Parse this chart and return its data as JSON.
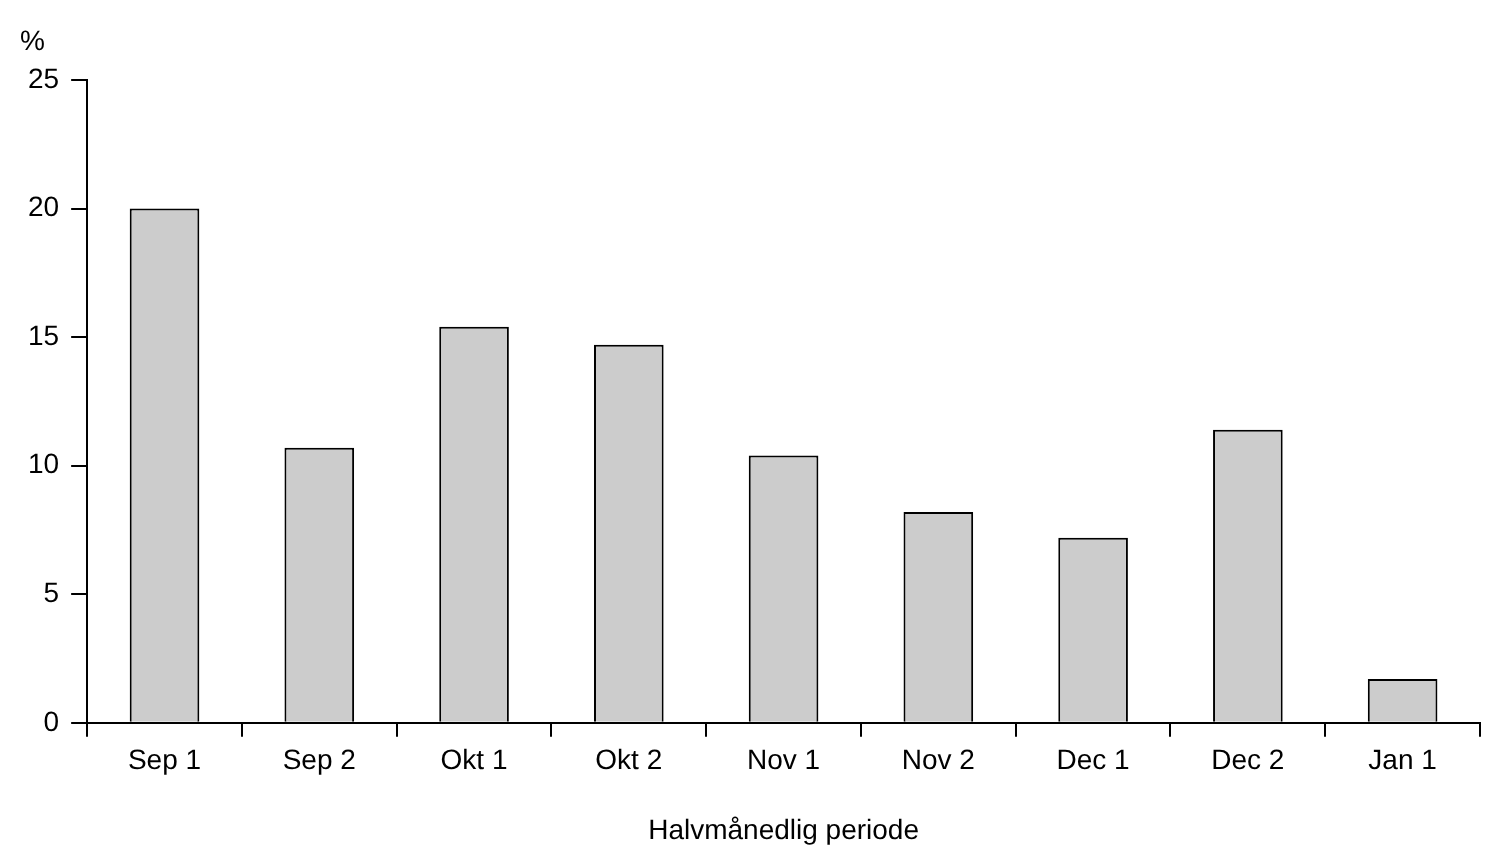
{
  "chart_data": {
    "type": "bar",
    "xlabel": "Halvmånedlig periode",
    "ylabel": "%",
    "categories": [
      "Sep 1",
      "Sep 2",
      "Okt 1",
      "Okt 2",
      "Nov 1",
      "Nov 2",
      "Dec 1",
      "Dec 2",
      "Jan 1"
    ],
    "values": [
      20,
      10.7,
      15.4,
      14.7,
      10.4,
      8.2,
      7.2,
      11.4,
      1.7
    ],
    "color": "#cccccc",
    "ylim": [
      0,
      25
    ],
    "yticks": [
      0,
      5,
      10,
      15,
      20,
      25
    ],
    "grid": false,
    "legend": false
  }
}
